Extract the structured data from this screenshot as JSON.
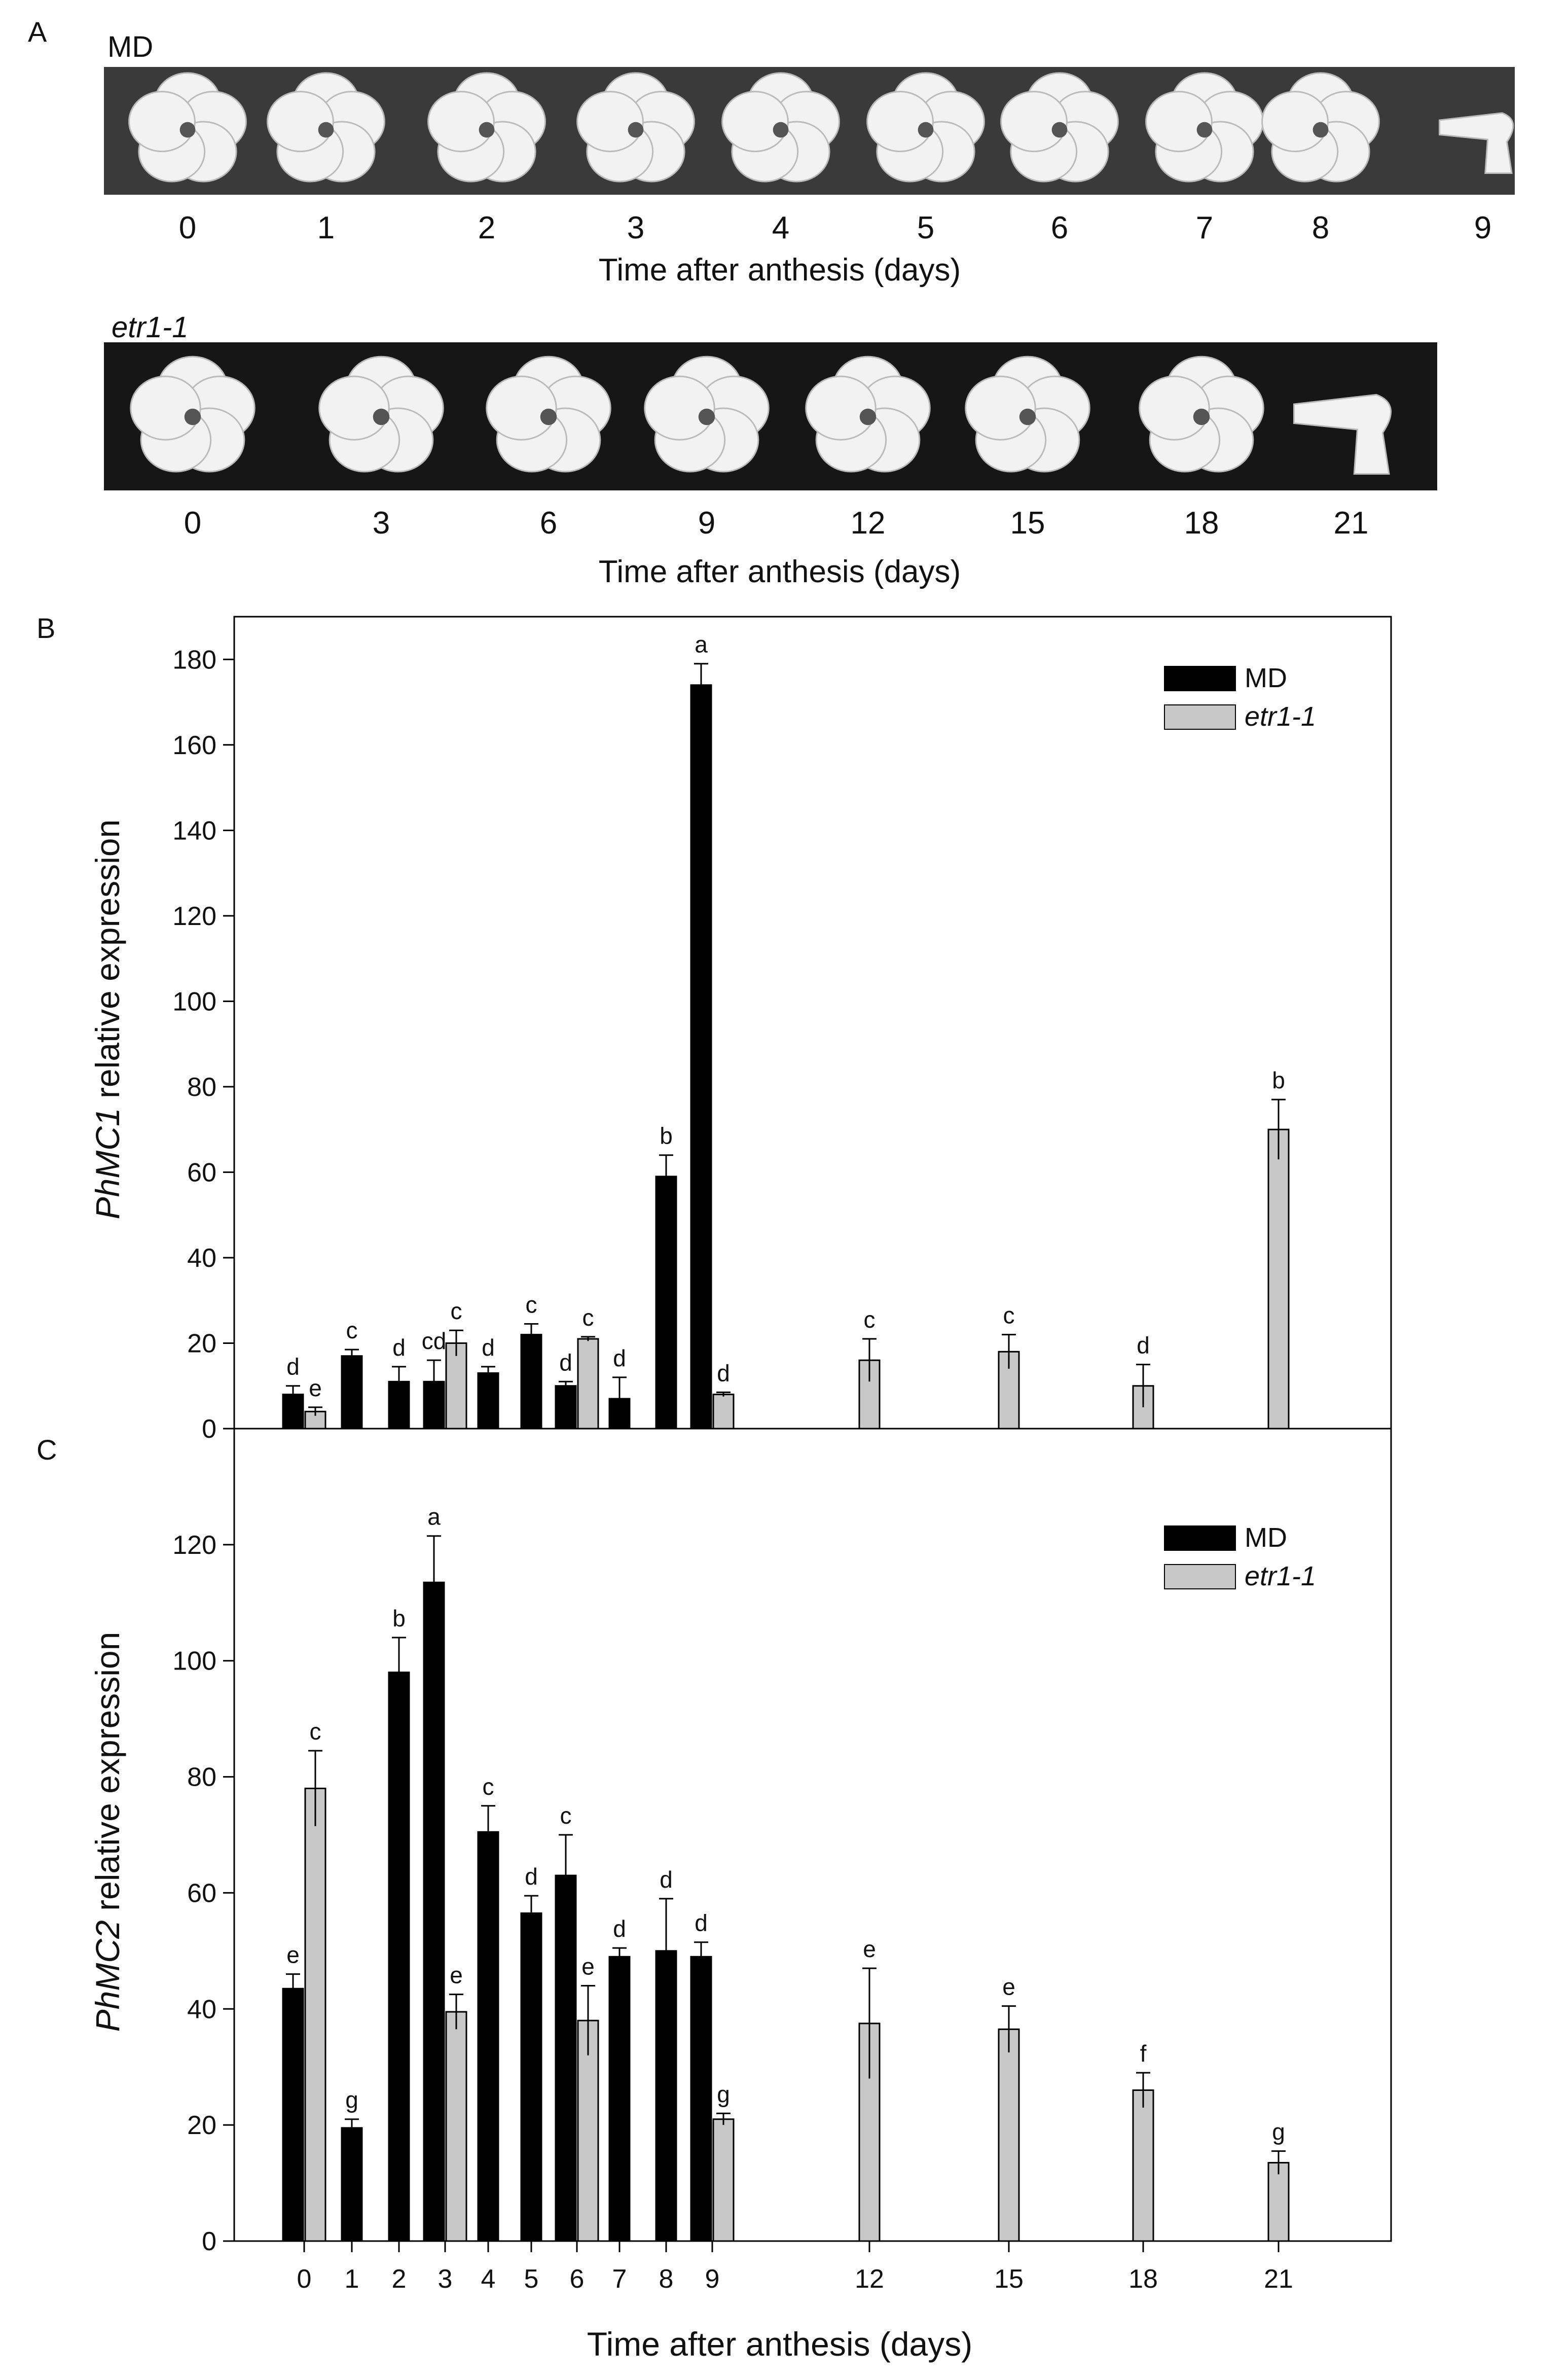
{
  "panel_a": {
    "label": "A",
    "md": {
      "genotype": "MD",
      "days": [
        "0",
        "1",
        "2",
        "3",
        "4",
        "5",
        "6",
        "7",
        "8",
        "9"
      ],
      "xlabel": "Time after anthesis (days)"
    },
    "etr": {
      "genotype": "etr1-1",
      "days": [
        "0",
        "3",
        "6",
        "9",
        "12",
        "15",
        "18",
        "21"
      ],
      "xlabel": "Time after anthesis (days)"
    }
  },
  "chart_data": [
    {
      "panel": "B",
      "type": "bar",
      "ylabel_italic": "PhMC1",
      "ylabel_rest": " relative expression",
      "ylim": [
        0,
        190
      ],
      "yticks": [
        0,
        20,
        40,
        60,
        80,
        100,
        120,
        140,
        160,
        180
      ],
      "legend_position": "top-right",
      "series": [
        {
          "name": "MD",
          "color": "#000000",
          "x": [
            0,
            1,
            2,
            3,
            4,
            5,
            6,
            7,
            8,
            9
          ],
          "values": [
            8,
            17,
            11,
            11,
            13,
            22,
            10,
            7,
            59,
            174
          ],
          "errors": [
            2,
            1.5,
            3.5,
            5,
            1.5,
            2.5,
            1,
            5,
            5,
            5
          ],
          "letters": [
            "d",
            "c",
            "d",
            "cd",
            "d",
            "c",
            "d",
            "d",
            "b",
            "a"
          ]
        },
        {
          "name": "etr1-1",
          "color": "#c8c8c8",
          "x": [
            0,
            3,
            6,
            9,
            12,
            15,
            18,
            21
          ],
          "values": [
            4,
            20,
            21,
            8,
            16,
            18,
            10,
            70
          ],
          "errors": [
            1,
            3,
            0.5,
            0.5,
            5,
            4,
            5,
            7
          ],
          "letters": [
            "e",
            "c",
            "c",
            "d",
            "c",
            "c",
            "d",
            "b"
          ]
        }
      ]
    },
    {
      "panel": "C",
      "type": "bar",
      "ylabel_italic": "PhMC2",
      "ylabel_rest": " relative expression",
      "xlabel": "Time after anthesis (days)",
      "ylim": [
        0,
        140
      ],
      "yticks": [
        0,
        20,
        40,
        60,
        80,
        100,
        120
      ],
      "xticks": [
        "0",
        "1",
        "2",
        "3",
        "4",
        "5",
        "6",
        "7",
        "8",
        "9",
        "12",
        "15",
        "18",
        "21"
      ],
      "legend_position": "top-right",
      "series": [
        {
          "name": "MD",
          "color": "#000000",
          "x": [
            0,
            1,
            2,
            3,
            4,
            5,
            6,
            7,
            8,
            9
          ],
          "values": [
            43.5,
            19.5,
            98,
            113.5,
            70.5,
            56.5,
            63,
            49,
            50,
            49
          ],
          "errors": [
            2.5,
            1.5,
            6,
            8,
            4.5,
            3,
            7,
            1.5,
            9,
            2.5
          ],
          "letters": [
            "e",
            "g",
            "b",
            "a",
            "c",
            "d",
            "c",
            "d",
            "d",
            "d"
          ]
        },
        {
          "name": "etr1-1",
          "color": "#c8c8c8",
          "x": [
            0,
            3,
            6,
            9,
            12,
            15,
            18,
            21
          ],
          "values": [
            78,
            39.5,
            38,
            21,
            37.5,
            36.5,
            26,
            13.5
          ],
          "errors": [
            6.5,
            3,
            6,
            1,
            9.5,
            4,
            3,
            2
          ],
          "letters": [
            "c",
            "e",
            "e",
            "g",
            "e",
            "e",
            "f",
            "g"
          ]
        }
      ]
    }
  ]
}
